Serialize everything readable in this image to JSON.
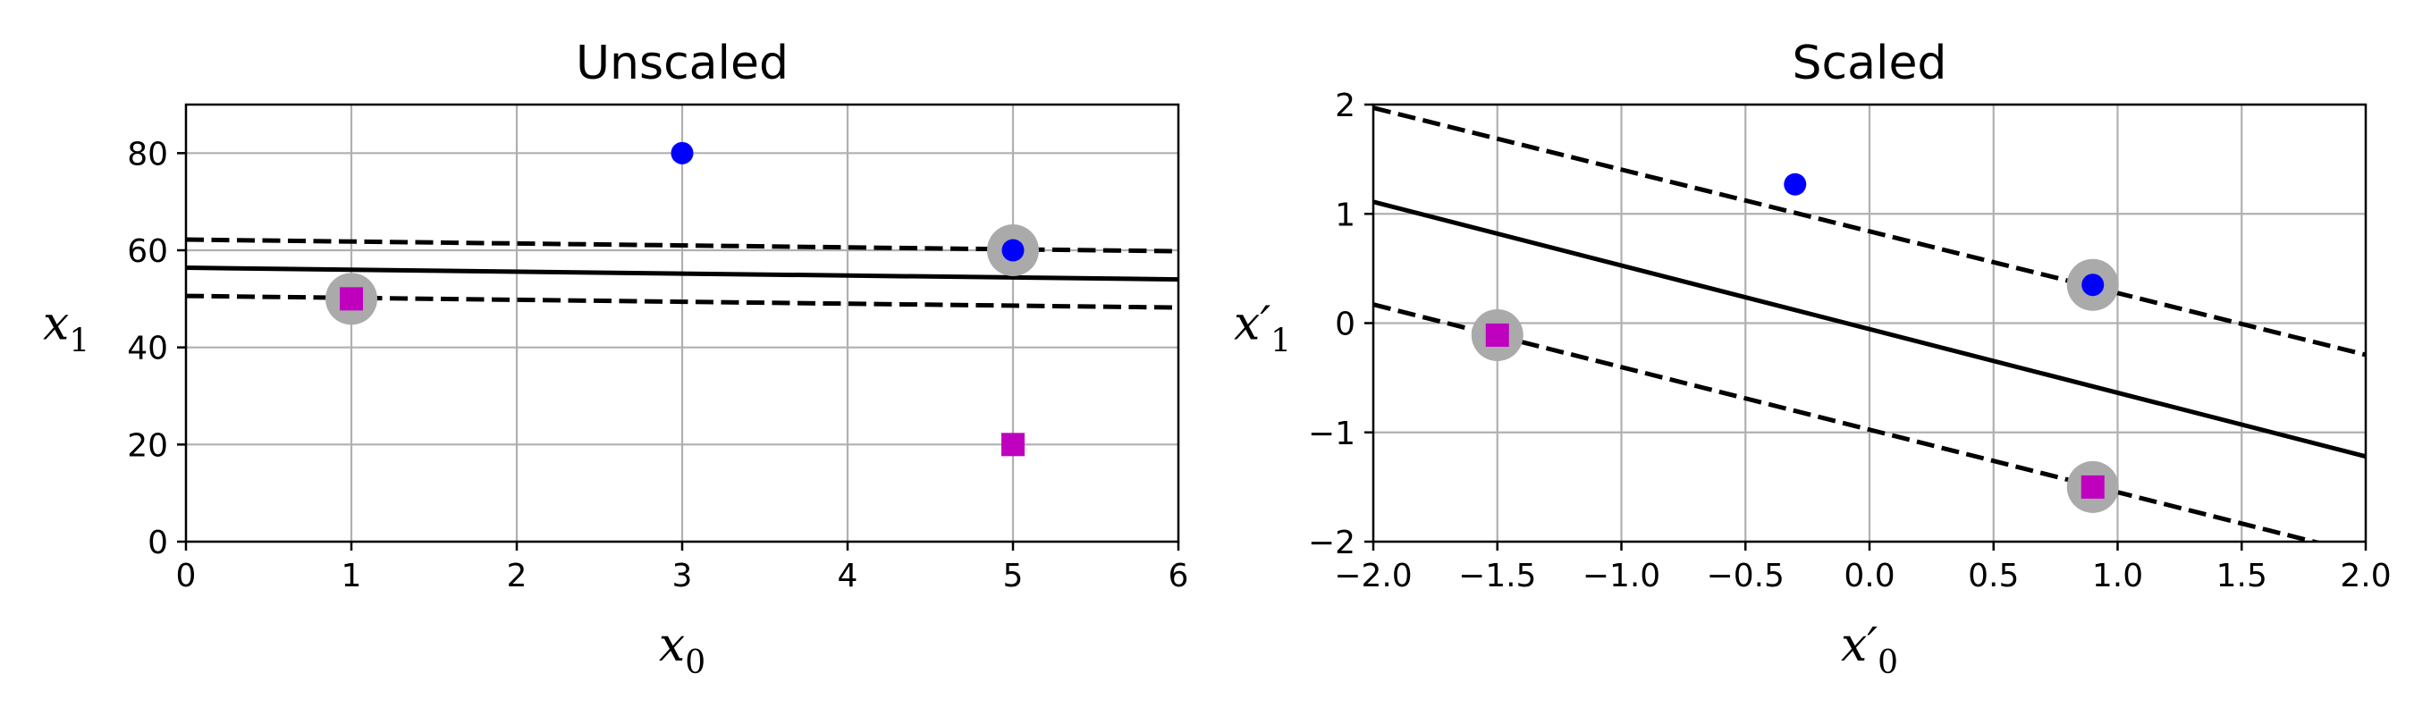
{
  "chart_data": [
    {
      "type": "scatter",
      "title": "Unscaled",
      "xlabel": "x",
      "xlabel_sub": "0",
      "ylabel": "x",
      "ylabel_sub": "1",
      "xlim": [
        0,
        6
      ],
      "ylim": [
        0,
        90
      ],
      "xticks": [
        0,
        1,
        2,
        3,
        4,
        5,
        6
      ],
      "xtick_labels": [
        "0",
        "1",
        "2",
        "3",
        "4",
        "5",
        "6"
      ],
      "yticks": [
        0,
        20,
        40,
        60,
        80
      ],
      "ytick_labels": [
        "0",
        "20",
        "40",
        "60",
        "80"
      ],
      "grid": true,
      "series": [
        {
          "marker": "circle",
          "color": "#0000ff",
          "points": [
            [
              3,
              80
            ],
            [
              5,
              60
            ]
          ]
        },
        {
          "marker": "square",
          "color": "#bf00bf",
          "points": [
            [
              1,
              50
            ],
            [
              5,
              20
            ]
          ]
        }
      ],
      "support_vectors": {
        "color": "#aaaaaa",
        "points": [
          [
            1,
            50
          ],
          [
            5,
            60
          ]
        ]
      },
      "lines": [
        {
          "style": "solid",
          "points": [
            [
              0,
              56.4
            ],
            [
              6,
              54.0
            ]
          ]
        },
        {
          "style": "dashed",
          "points": [
            [
              0,
              62.2
            ],
            [
              6,
              59.8
            ]
          ]
        },
        {
          "style": "dashed",
          "points": [
            [
              0,
              50.6
            ],
            [
              6,
              48.2
            ]
          ]
        }
      ]
    },
    {
      "type": "scatter",
      "title": "Scaled",
      "xlabel": "x′",
      "xlabel_sub": "0",
      "ylabel": "x′",
      "ylabel_sub": "1",
      "xlim": [
        -2,
        2
      ],
      "ylim": [
        -2,
        2
      ],
      "xticks": [
        -2,
        -1.5,
        -1,
        -0.5,
        0,
        0.5,
        1,
        1.5,
        2
      ],
      "xtick_labels": [
        "−2.0",
        "−1.5",
        "−1.0",
        "−0.5",
        "0.0",
        "0.5",
        "1.0",
        "1.5",
        "2.0"
      ],
      "yticks": [
        -2,
        -1,
        0,
        1,
        2
      ],
      "ytick_labels": [
        "−2",
        "−1",
        "0",
        "1",
        "2"
      ],
      "grid": true,
      "series": [
        {
          "marker": "circle",
          "color": "#0000ff",
          "points": [
            [
              -0.3,
              1.27
            ],
            [
              0.9,
              0.35
            ]
          ]
        },
        {
          "marker": "square",
          "color": "#bf00bf",
          "points": [
            [
              -1.5,
              -0.11
            ],
            [
              0.9,
              -1.5
            ]
          ]
        }
      ],
      "support_vectors": {
        "color": "#aaaaaa",
        "points": [
          [
            -1.5,
            -0.11
          ],
          [
            0.9,
            0.35
          ],
          [
            0.9,
            -1.5
          ]
        ]
      },
      "lines": [
        {
          "style": "solid",
          "points": [
            [
              -2,
              1.11
            ],
            [
              2,
              -1.22
            ]
          ]
        },
        {
          "style": "dashed",
          "points": [
            [
              -2,
              1.97
            ],
            [
              2,
              -0.29
            ]
          ]
        },
        {
          "style": "dashed",
          "points": [
            [
              -2,
              0.17
            ],
            [
              2,
              -2.12
            ]
          ]
        }
      ]
    }
  ]
}
